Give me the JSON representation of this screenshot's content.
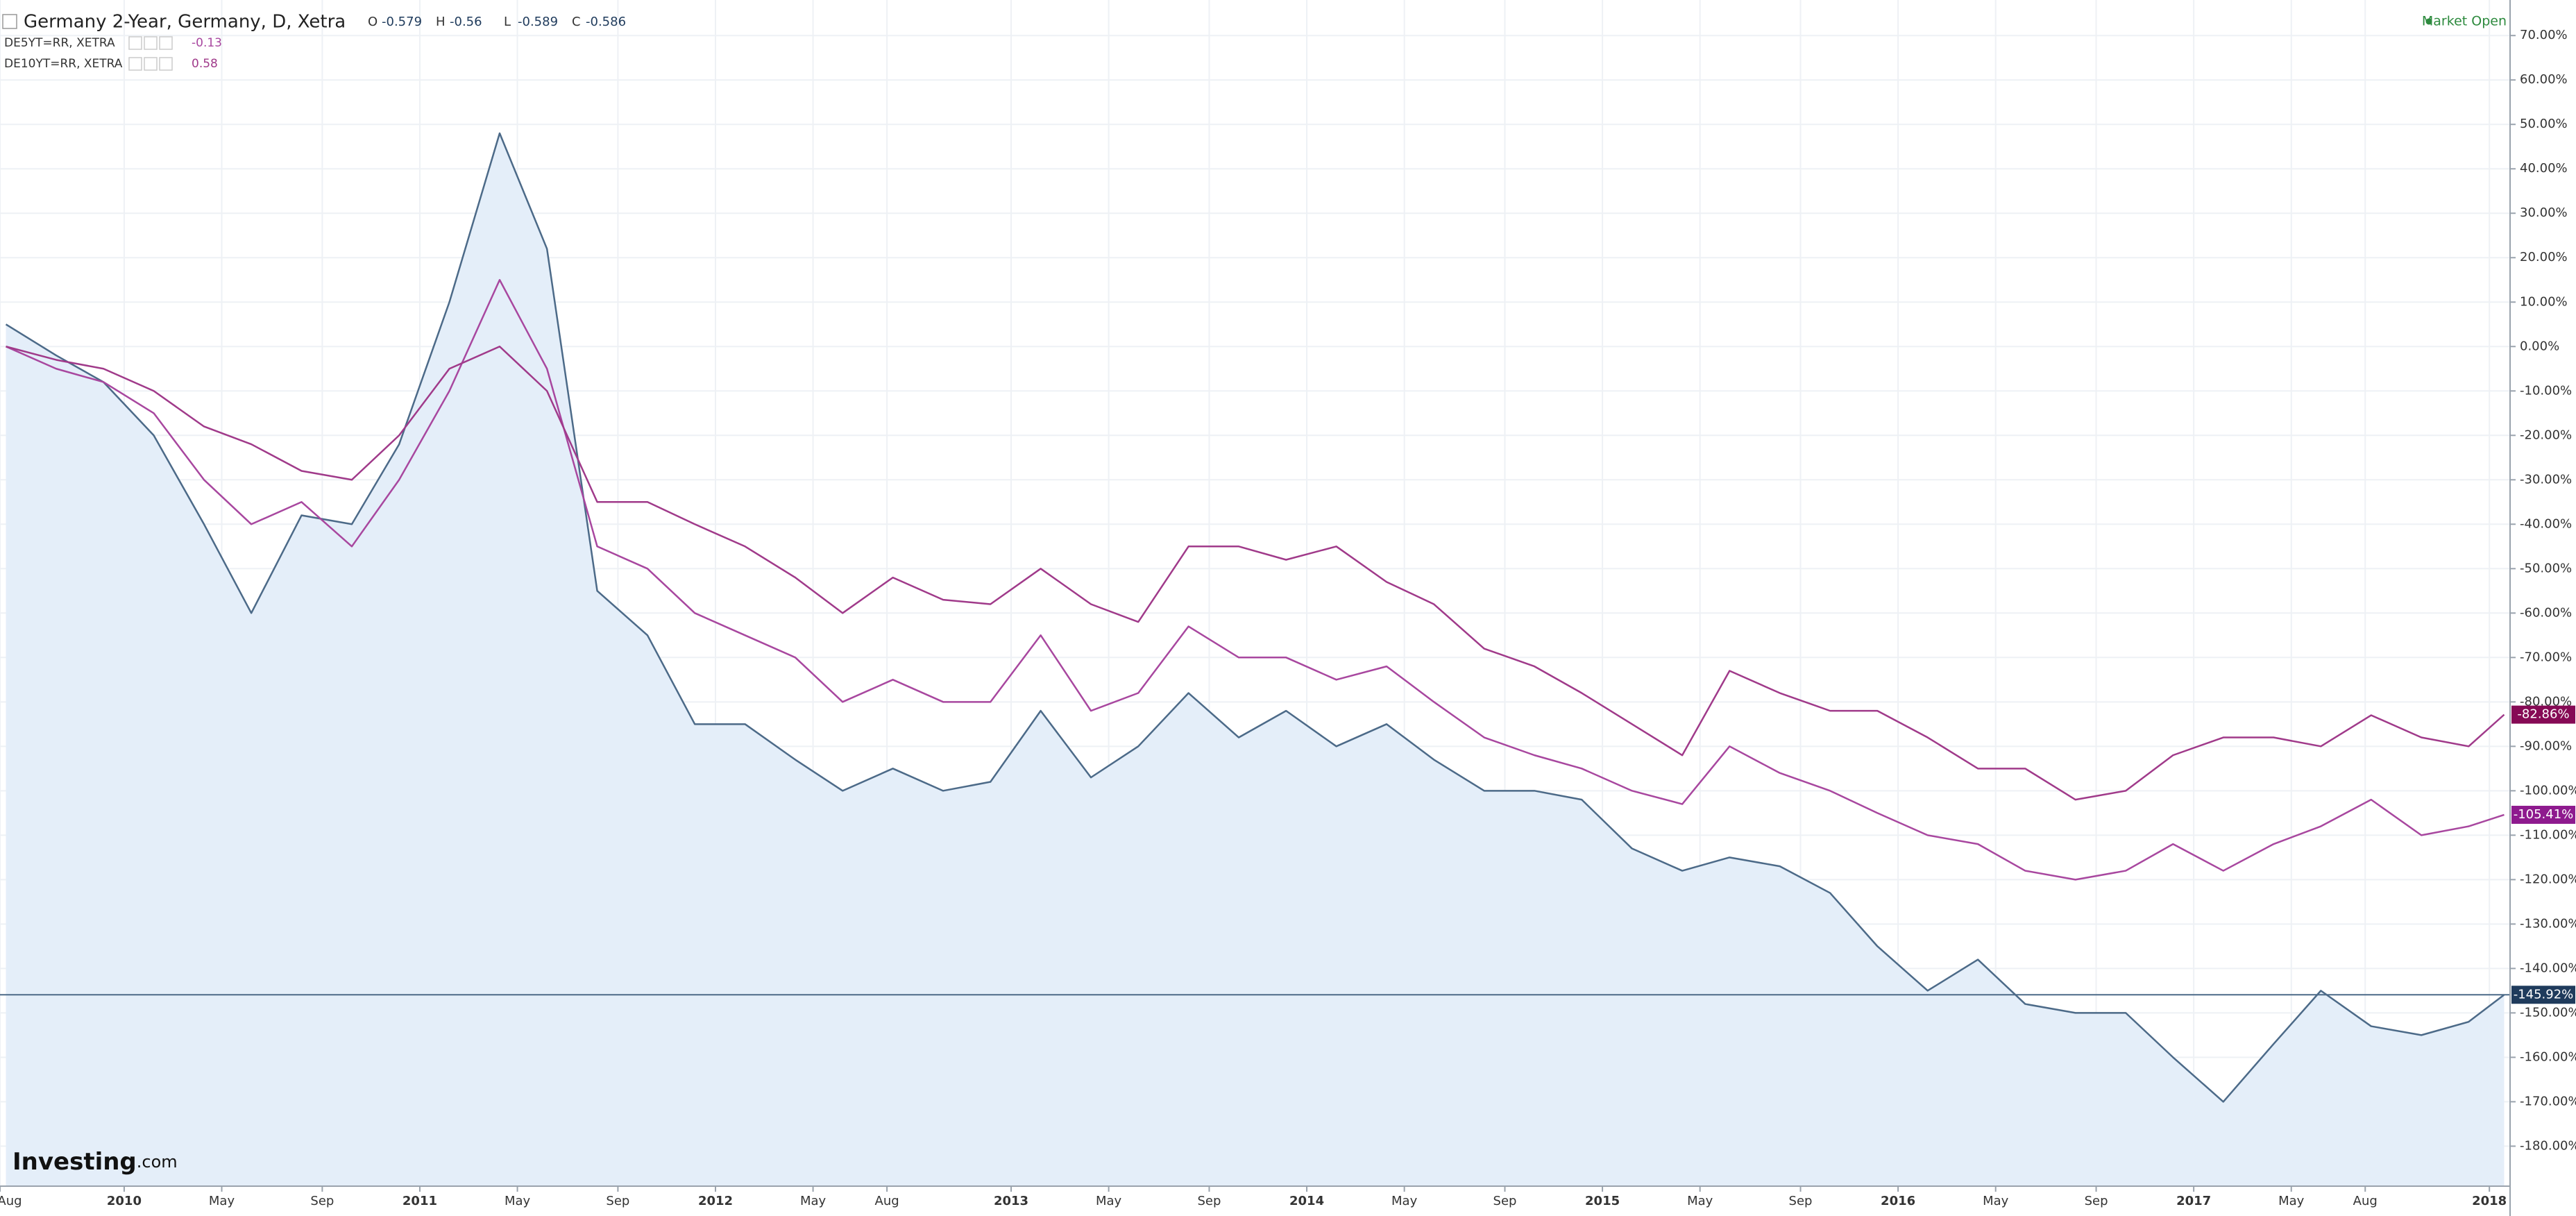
{
  "chart_data": {
    "type": "line",
    "ohlc": [
      {
        "label": "O",
        "value": -0.579
      },
      {
        "label": "H",
        "value": -0.56
      },
      {
        "label": "L",
        "value": -0.589
      },
      {
        "label": "C",
        "value": -0.586
      }
    ],
    "status": "Market Open",
    "logo": "Investing",
    "logo_suffix": ".com",
    "x": [
      2009.6,
      2009.77,
      2009.93,
      2010.1,
      2010.27,
      2010.43,
      2010.6,
      2010.77,
      2010.93,
      2011.1,
      2011.27,
      2011.43,
      2011.6,
      2011.77,
      2011.93,
      2012.1,
      2012.27,
      2012.43,
      2012.6,
      2012.77,
      2012.93,
      2013.1,
      2013.27,
      2013.43,
      2013.6,
      2013.77,
      2013.93,
      2014.1,
      2014.27,
      2014.43,
      2014.6,
      2014.77,
      2014.93,
      2015.1,
      2015.27,
      2015.43,
      2015.6,
      2015.77,
      2015.93,
      2016.1,
      2016.27,
      2016.43,
      2016.6,
      2016.77,
      2016.93,
      2017.1,
      2017.27,
      2017.43,
      2017.6,
      2017.77,
      2017.93,
      2018.05
    ],
    "series": [
      {
        "name": "Germany 2-Year, Germany, D, Xetra",
        "color": "#4c6a88",
        "fill": "#e4eef9",
        "label_color": "#1f3b5c",
        "area": true,
        "values": [
          5,
          -2,
          -8,
          -20,
          -40,
          -60,
          -38,
          -40,
          -22,
          10,
          48,
          22,
          -55,
          -65,
          -85,
          -85,
          -93,
          -100,
          -95,
          -100,
          -98,
          -82,
          -97,
          -90,
          -78,
          -88,
          -82,
          -90,
          -85,
          -93,
          -100,
          -100,
          -102,
          -113,
          -118,
          -115,
          -117,
          -123,
          -135,
          -145,
          -138,
          -148,
          -150,
          -150,
          -160,
          -170,
          -157,
          -145,
          -153,
          -155,
          -152,
          -145.92
        ],
        "value_labels": [
          null,
          null,
          null,
          null,
          null,
          null,
          null,
          null,
          null,
          null,
          null,
          null,
          null,
          null,
          null,
          null,
          null,
          null,
          null,
          null,
          null,
          null,
          null,
          null,
          null,
          null,
          null,
          null,
          null,
          null,
          null,
          null,
          null,
          null,
          null,
          null,
          null,
          null,
          null,
          null,
          null,
          null,
          null,
          null,
          null,
          null,
          null,
          null,
          null,
          null,
          null,
          "-145.92%"
        ]
      },
      {
        "name": "DE5YT=RR, XETRA",
        "legend_value": -0.13,
        "color": "#a8479f",
        "label_color": "#8e1a8e",
        "values": [
          0,
          -5,
          -8,
          -15,
          -30,
          -40,
          -35,
          -45,
          -30,
          -10,
          15,
          -5,
          -45,
          -50,
          -60,
          -65,
          -70,
          -80,
          -75,
          -80,
          -80,
          -65,
          -82,
          -78,
          -63,
          -70,
          -70,
          -75,
          -72,
          -80,
          -88,
          -92,
          -95,
          -100,
          -103,
          -90,
          -96,
          -100,
          -105,
          -110,
          -112,
          -118,
          -120,
          -118,
          -112,
          -118,
          -112,
          -108,
          -102,
          -110,
          -108,
          -105.41
        ],
        "value_labels": [
          null,
          null,
          null,
          null,
          null,
          null,
          null,
          null,
          null,
          null,
          null,
          null,
          null,
          null,
          null,
          null,
          null,
          null,
          null,
          null,
          null,
          null,
          null,
          null,
          null,
          null,
          null,
          null,
          null,
          null,
          null,
          null,
          null,
          null,
          null,
          null,
          null,
          null,
          null,
          null,
          null,
          null,
          null,
          null,
          null,
          null,
          null,
          null,
          null,
          null,
          null,
          "-105.41%"
        ]
      },
      {
        "name": "DE10YT=RR, XETRA",
        "legend_value": 0.58,
        "color": "#a03a8a",
        "label_color": "#860a55",
        "values": [
          0,
          -3,
          -5,
          -10,
          -18,
          -22,
          -28,
          -30,
          -20,
          -5,
          0,
          -10,
          -35,
          -35,
          -40,
          -45,
          -52,
          -60,
          -52,
          -57,
          -58,
          -50,
          -58,
          -62,
          -45,
          -45,
          -48,
          -45,
          -53,
          -58,
          -68,
          -72,
          -78,
          -85,
          -92,
          -73,
          -78,
          -82,
          -82,
          -88,
          -95,
          -95,
          -102,
          -100,
          -92,
          -88,
          -88,
          -90,
          -83,
          -88,
          -90,
          -82.86
        ],
        "value_labels": [
          null,
          null,
          null,
          null,
          null,
          null,
          null,
          null,
          null,
          null,
          null,
          null,
          null,
          null,
          null,
          null,
          null,
          null,
          null,
          null,
          null,
          null,
          null,
          null,
          null,
          null,
          null,
          null,
          null,
          null,
          null,
          null,
          null,
          null,
          null,
          null,
          null,
          null,
          null,
          null,
          null,
          null,
          null,
          null,
          null,
          null,
          null,
          null,
          null,
          null,
          null,
          "-82.86%"
        ]
      }
    ],
    "xlim": [
      2009.58,
      2018.07
    ],
    "xticks": [
      {
        "value": 2009.58,
        "label": "Aug"
      },
      2010,
      {
        "value": 2010.33,
        "label": "May"
      },
      {
        "value": 2010.67,
        "label": "Sep"
      },
      2011,
      {
        "value": 2011.33,
        "label": "May"
      },
      {
        "value": 2011.67,
        "label": "Sep"
      },
      2012,
      {
        "value": 2012.33,
        "label": "May"
      },
      {
        "value": 2012.58,
        "label": "Aug"
      },
      2013,
      {
        "value": 2013.33,
        "label": "May"
      },
      {
        "value": 2013.67,
        "label": "Sep"
      },
      2014,
      {
        "value": 2014.33,
        "label": "May"
      },
      {
        "value": 2014.67,
        "label": "Sep"
      },
      2015,
      {
        "value": 2015.33,
        "label": "May"
      },
      {
        "value": 2015.67,
        "label": "Sep"
      },
      2016,
      {
        "value": 2016.33,
        "label": "May"
      },
      {
        "value": 2016.67,
        "label": "Sep"
      },
      2017,
      {
        "value": 2017.33,
        "label": "May"
      },
      {
        "value": 2017.58,
        "label": "Aug"
      },
      2018
    ],
    "ylim": [
      -189,
      78
    ],
    "yticks": [
      {
        "value": -180,
        "label": "-180.00%"
      },
      {
        "value": -170,
        "label": "-170.00%"
      },
      {
        "value": -160,
        "label": "-160.00%"
      },
      {
        "value": -150,
        "label": "-150.00%"
      },
      {
        "value": -140,
        "label": "-140.00%"
      },
      {
        "value": -130,
        "label": "-130.00%"
      },
      {
        "value": -120,
        "label": "-120.00%"
      },
      {
        "value": -110,
        "label": "-110.00%"
      },
      {
        "value": -100,
        "label": "-100.00%"
      },
      {
        "value": -90,
        "label": "-90.00%"
      },
      {
        "value": -80,
        "label": "-80.00%"
      },
      {
        "value": -70,
        "label": "-70.00%"
      },
      {
        "value": -60,
        "label": "-60.00%"
      },
      {
        "value": -50,
        "label": "-50.00%"
      },
      {
        "value": -40,
        "label": "-40.00%"
      },
      {
        "value": -30,
        "label": "-30.00%"
      },
      {
        "value": -20,
        "label": "-20.00%"
      },
      {
        "value": -10,
        "label": "-10.00%"
      },
      {
        "value": 0,
        "label": "0.00%"
      },
      {
        "value": 10,
        "label": "10.00%"
      },
      {
        "value": 20,
        "label": "20.00%"
      },
      {
        "value": 30,
        "label": "30.00%"
      },
      {
        "value": 40,
        "label": "40.00%"
      },
      {
        "value": 50,
        "label": "50.00%"
      },
      {
        "value": 60,
        "label": "60.00%"
      },
      {
        "value": 70,
        "label": "70.00%"
      }
    ],
    "grid": true
  }
}
